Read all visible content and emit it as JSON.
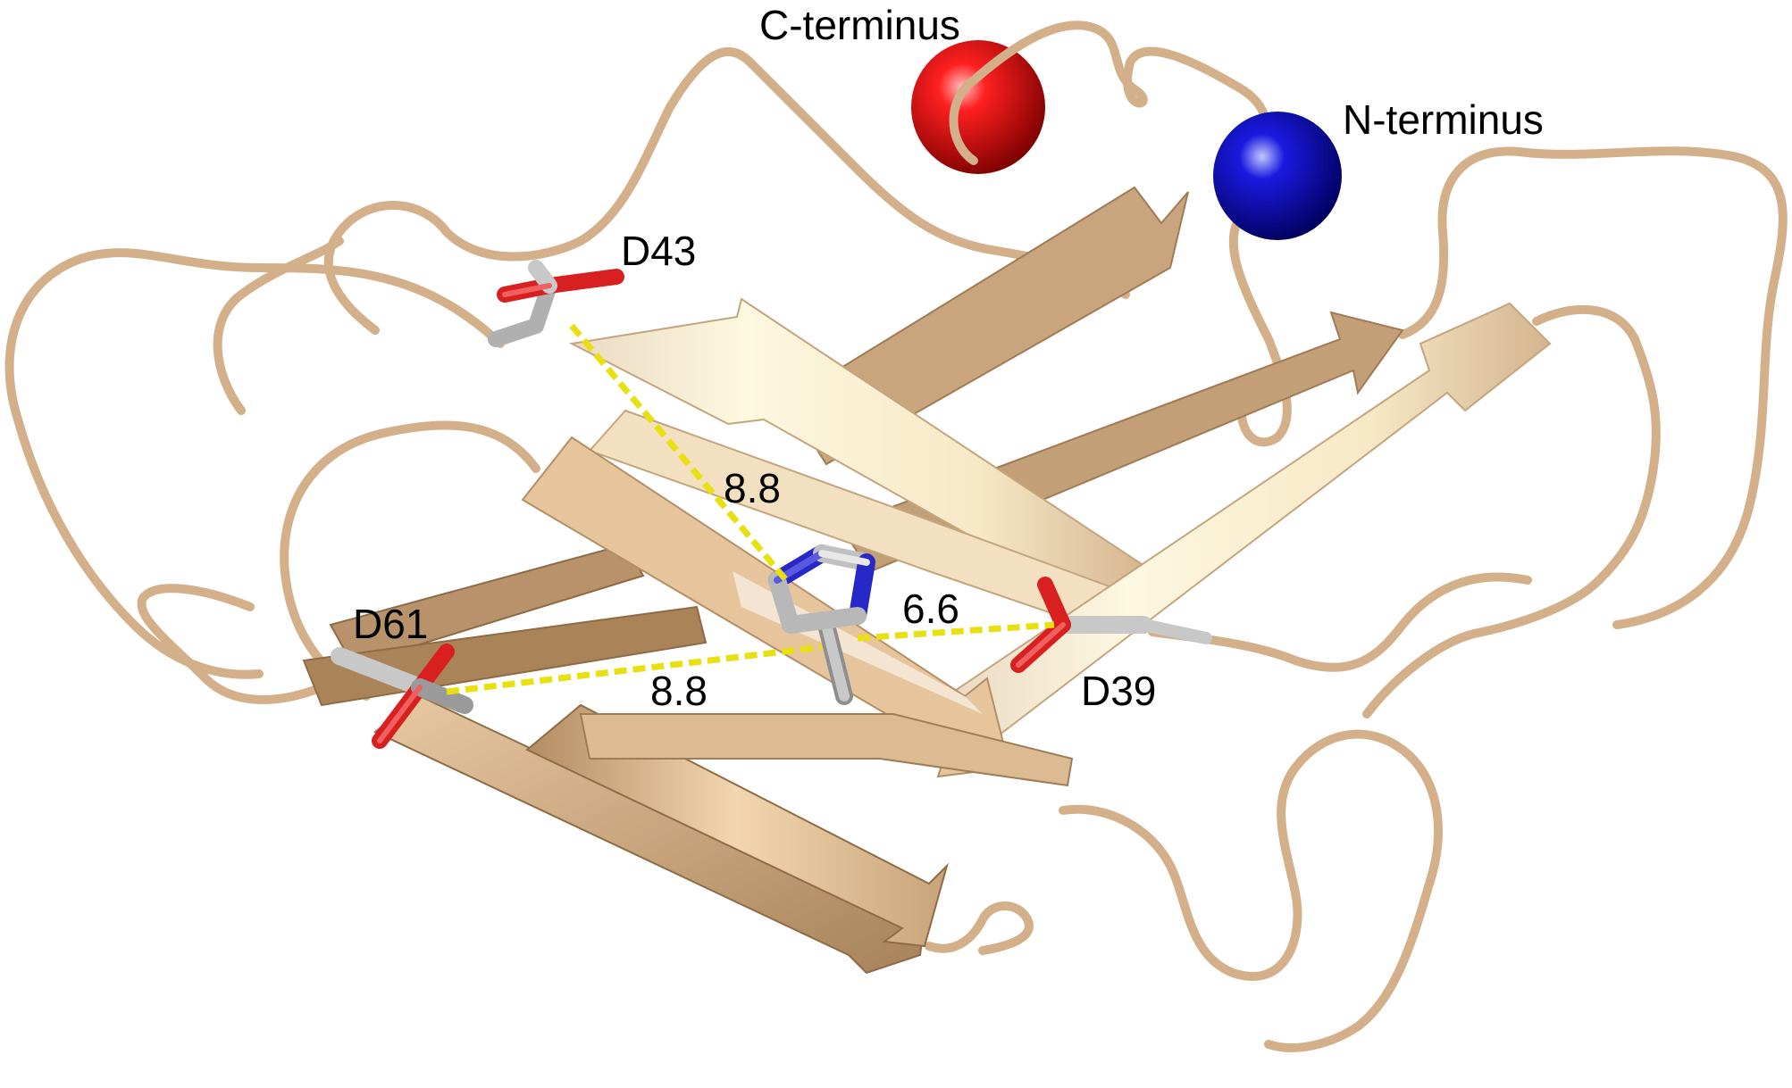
{
  "figure": {
    "description_type": "protein-cartoon",
    "colors": {
      "ribbon": "#d3b08a",
      "ribbon_light": "#f0d3ad",
      "ribbon_dark": "#8c6a48",
      "c_terminus_sphere": "#e01010",
      "n_terminus_sphere": "#1010c8",
      "carbon": "#b8b8b8",
      "oxygen": "#d82020",
      "nitrogen": "#2828c8",
      "distance_line": "#e8e010"
    },
    "termini": {
      "c_label": "C-terminus",
      "n_label": "N-terminus"
    },
    "residues": {
      "d43": "D43",
      "d61": "D61",
      "d39": "D39"
    },
    "distances": {
      "d43_his": "8.8",
      "d39_his": "6.6",
      "d61_his": "8.8"
    }
  }
}
